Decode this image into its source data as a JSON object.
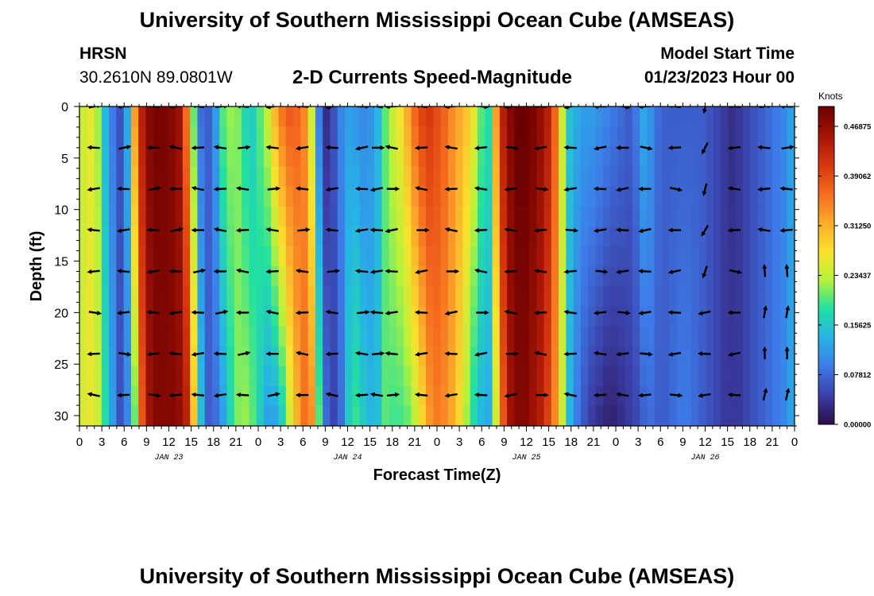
{
  "header": {
    "title": "University of Southern Mississippi Ocean Cube (AMSEAS)",
    "station": "HRSN",
    "coords": "30.2610N  89.0801W",
    "subtitle": "2-D Currents Speed-Magnitude",
    "model_label": "Model Start Time",
    "model_time": "01/23/2023 Hour 00"
  },
  "footer": {
    "title": "University of Southern Mississippi Ocean Cube (AMSEAS)"
  },
  "colors": {
    "stops": [
      "#2b0c46",
      "#3b3fa8",
      "#3d7be8",
      "#27b3e6",
      "#22e0a0",
      "#b6f23a",
      "#fbe12c",
      "#fbaa2c",
      "#f56a1e",
      "#d6360f",
      "#a41405",
      "#6b0000"
    ]
  },
  "chart_data": {
    "type": "heatmap",
    "title": "2-D Currents Speed-Magnitude",
    "xlabel": "Forecast Time(Z)",
    "ylabel": "Depth (ft)",
    "xlim": [
      0,
      96
    ],
    "ylim": [
      31,
      0
    ],
    "x_tick_labels": [
      "0",
      "3",
      "6",
      "9",
      "12",
      "15",
      "18",
      "21",
      "0",
      "3",
      "6",
      "9",
      "12",
      "15",
      "18",
      "21",
      "0",
      "3",
      "6",
      "9",
      "12",
      "15",
      "18",
      "21",
      "0",
      "3",
      "6",
      "9",
      "12",
      "15",
      "18",
      "21",
      "0"
    ],
    "y_ticks": [
      0,
      5,
      10,
      15,
      20,
      25,
      30
    ],
    "y_tick_labels": [
      "0",
      "5",
      "10",
      "15",
      "20",
      "25",
      "30"
    ],
    "dates": [
      {
        "label": "JAN 23",
        "hour": 12
      },
      {
        "label": "JAN 24",
        "hour": 36
      },
      {
        "label": "JAN 25",
        "hour": 60
      },
      {
        "label": "JAN 26",
        "hour": 84
      }
    ],
    "colorbar": {
      "unit_label": "Knots",
      "range": [
        0.0,
        0.5
      ],
      "tick_values": [
        0.0,
        0.078125,
        0.15625,
        0.234375,
        0.3125,
        0.390625,
        0.46875
      ],
      "tick_labels": [
        "0.00000",
        "0.07812",
        "0.15625",
        "0.23437",
        "0.31250",
        "0.39062",
        "0.46875"
      ]
    },
    "speed_profile": {
      "hours": [
        0,
        1,
        2,
        3,
        4,
        5,
        6,
        7,
        8,
        9,
        10,
        11,
        12,
        13,
        14,
        15,
        16,
        17,
        18,
        19,
        20,
        21,
        22,
        23,
        24,
        25,
        26,
        27,
        28,
        29,
        30,
        31,
        32,
        33,
        34,
        35,
        36,
        37,
        38,
        39,
        40,
        41,
        42,
        43,
        44,
        45,
        46,
        47,
        48,
        49,
        50,
        51,
        52,
        53,
        54,
        55,
        56,
        57,
        58,
        59,
        60,
        61,
        62,
        63,
        64,
        65,
        66,
        67,
        68,
        69,
        70,
        71,
        72,
        73,
        74,
        75,
        76,
        77,
        78,
        79,
        80,
        81,
        82,
        83,
        84,
        85,
        86,
        87,
        88,
        89,
        90,
        91,
        92,
        93,
        94,
        95,
        96
      ],
      "surface_knots": [
        0.24,
        0.26,
        0.22,
        0.14,
        0.09,
        0.06,
        0.13,
        0.33,
        0.44,
        0.48,
        0.49,
        0.49,
        0.48,
        0.46,
        0.36,
        0.2,
        0.08,
        0.07,
        0.12,
        0.2,
        0.22,
        0.21,
        0.17,
        0.16,
        0.2,
        0.24,
        0.31,
        0.36,
        0.38,
        0.37,
        0.34,
        0.24,
        0.09,
        0.03,
        0.06,
        0.1,
        0.12,
        0.11,
        0.1,
        0.11,
        0.14,
        0.2,
        0.24,
        0.27,
        0.32,
        0.37,
        0.4,
        0.41,
        0.39,
        0.37,
        0.34,
        0.32,
        0.3,
        0.26,
        0.2,
        0.18,
        0.33,
        0.44,
        0.48,
        0.5,
        0.5,
        0.49,
        0.47,
        0.44,
        0.37,
        0.24,
        0.15,
        0.13,
        0.12,
        0.12,
        0.11,
        0.1,
        0.09,
        0.08,
        0.07,
        0.09,
        0.13,
        0.11,
        0.08,
        0.07,
        0.07,
        0.07,
        0.07,
        0.07,
        0.07,
        0.06,
        0.05,
        0.04,
        0.03,
        0.04,
        0.05,
        0.06,
        0.07,
        0.08,
        0.09,
        0.1,
        0.12
      ],
      "bottom_knots": [
        0.25,
        0.26,
        0.24,
        0.18,
        0.12,
        0.06,
        0.1,
        0.2,
        0.38,
        0.46,
        0.48,
        0.48,
        0.48,
        0.47,
        0.44,
        0.3,
        0.15,
        0.07,
        0.08,
        0.12,
        0.17,
        0.21,
        0.22,
        0.2,
        0.16,
        0.12,
        0.12,
        0.16,
        0.24,
        0.31,
        0.36,
        0.34,
        0.2,
        0.08,
        0.05,
        0.08,
        0.16,
        0.19,
        0.16,
        0.14,
        0.15,
        0.2,
        0.19,
        0.19,
        0.2,
        0.23,
        0.28,
        0.33,
        0.35,
        0.34,
        0.32,
        0.28,
        0.22,
        0.17,
        0.14,
        0.13,
        0.24,
        0.38,
        0.46,
        0.48,
        0.48,
        0.46,
        0.44,
        0.4,
        0.34,
        0.24,
        0.14,
        0.09,
        0.06,
        0.04,
        0.03,
        0.02,
        0.02,
        0.03,
        0.04,
        0.05,
        0.07,
        0.08,
        0.07,
        0.07,
        0.08,
        0.09,
        0.09,
        0.08,
        0.07,
        0.06,
        0.05,
        0.04,
        0.04,
        0.04,
        0.05,
        0.06,
        0.07,
        0.08,
        0.09,
        0.1,
        0.12
      ]
    },
    "vector_depths": [
      0,
      4,
      8,
      12,
      16,
      20,
      24,
      28
    ],
    "vector_hours": [
      2,
      6,
      10,
      13,
      16,
      19,
      22,
      26,
      30,
      34,
      38,
      40,
      42,
      46,
      50,
      54,
      58,
      62,
      66,
      70,
      73,
      76,
      80,
      84,
      88,
      92,
      95
    ]
  }
}
